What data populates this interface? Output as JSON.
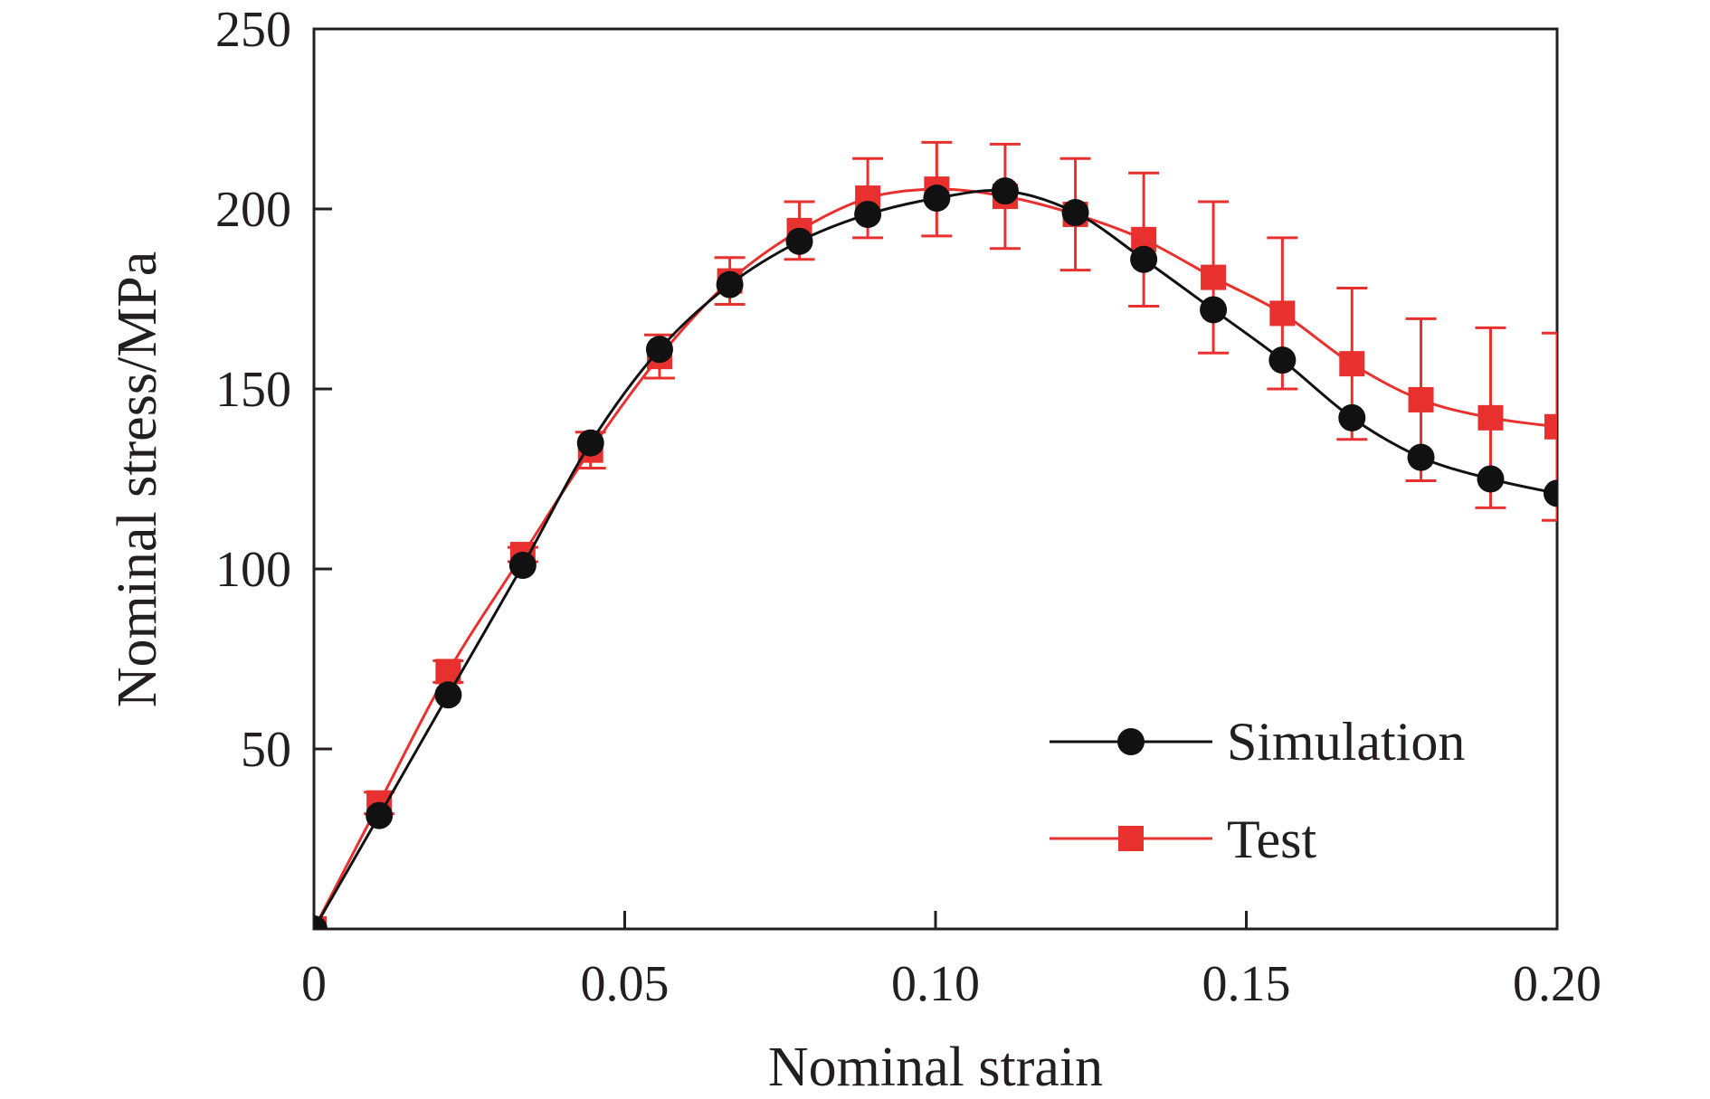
{
  "chart_data": {
    "type": "line",
    "title": "",
    "xlabel": "Nominal strain",
    "ylabel": "Nominal stress/MPa",
    "xlim": [
      0,
      0.2
    ],
    "ylim": [
      0,
      250
    ],
    "x_ticks": [
      {
        "value": 0,
        "label": "0"
      },
      {
        "value": 0.05,
        "label": "0.05"
      },
      {
        "value": 0.1,
        "label": "0.10"
      },
      {
        "value": 0.15,
        "label": "0.15"
      },
      {
        "value": 0.2,
        "label": "0.20"
      }
    ],
    "y_ticks": [
      {
        "value": 50,
        "label": "50"
      },
      {
        "value": 100,
        "label": "100"
      },
      {
        "value": 150,
        "label": "150"
      },
      {
        "value": 200,
        "label": "200"
      },
      {
        "value": 250,
        "label": "250"
      }
    ],
    "grid": false,
    "legend_position": "bottom-right",
    "series": [
      {
        "name": "Simulation",
        "color": "#111111",
        "marker": "circle",
        "x": [
          0,
          0.0105,
          0.0216,
          0.0336,
          0.0445,
          0.0556,
          0.0669,
          0.0781,
          0.0891,
          0.1002,
          0.1112,
          0.1225,
          0.1335,
          0.1447,
          0.1558,
          0.167,
          0.1781,
          0.1893,
          0.2
        ],
        "y": [
          0,
          31.5,
          65,
          101,
          135,
          161,
          179,
          191,
          198.5,
          203,
          205,
          199,
          186,
          172,
          158,
          142,
          131,
          125,
          121
        ]
      },
      {
        "name": "Test",
        "color": "#e8312f",
        "marker": "square",
        "x": [
          0,
          0.0105,
          0.0216,
          0.0336,
          0.0445,
          0.0556,
          0.0669,
          0.0781,
          0.0891,
          0.1002,
          0.1112,
          0.1225,
          0.1335,
          0.1447,
          0.1558,
          0.167,
          0.1781,
          0.1893,
          0.2
        ],
        "y": [
          0,
          35,
          71.5,
          104,
          133,
          159,
          180,
          194,
          203,
          205.5,
          203.5,
          198.5,
          191.5,
          181,
          171,
          157,
          147,
          142,
          139.5
        ],
        "error": [
          0,
          3,
          3,
          2,
          5,
          6,
          6.5,
          8,
          11,
          13,
          14.5,
          15.5,
          18.5,
          21,
          21,
          21,
          22.5,
          25,
          26
        ]
      }
    ]
  }
}
